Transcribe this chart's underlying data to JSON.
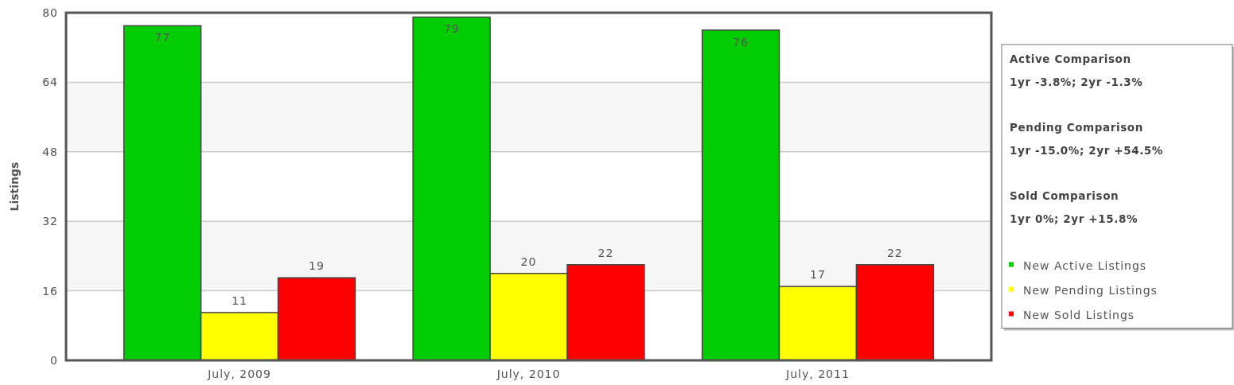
{
  "chart_data": {
    "type": "bar",
    "categories": [
      "July, 2009",
      "July, 2010",
      "July, 2011"
    ],
    "series": [
      {
        "name": "New Active Listings",
        "color": "#00cc00",
        "values": [
          77,
          79,
          76
        ]
      },
      {
        "name": "New Pending Listings",
        "color": "#ffff00",
        "values": [
          11,
          20,
          17
        ]
      },
      {
        "name": "New Sold Listings",
        "color": "#ff0000",
        "values": [
          19,
          22,
          22
        ]
      }
    ],
    "ylabel": "Listings",
    "ylim": [
      0,
      80
    ],
    "yticks": [
      0,
      16,
      32,
      48,
      64,
      80
    ],
    "grid": "y",
    "legend": "right",
    "data_labels": true,
    "annotations": [
      "Active Comparison",
      "1yr -3.8%; 2yr -1.3%",
      "Pending Comparison",
      "1yr -15.0%; 2yr +54.5%",
      "Sold Comparison",
      "1yr 0%; 2yr +15.8%"
    ]
  }
}
